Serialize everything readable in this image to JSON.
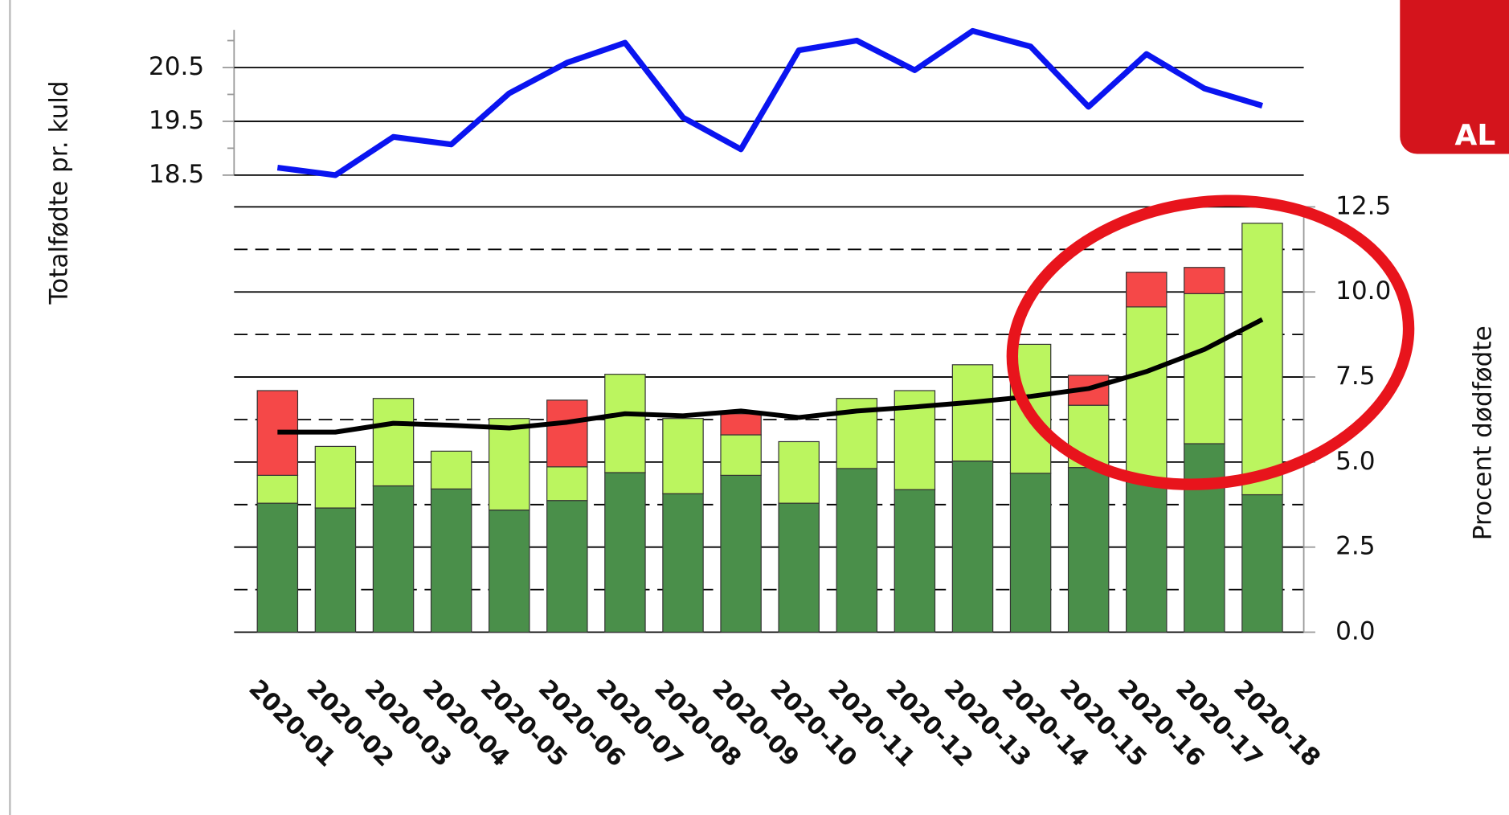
{
  "chart_data": [
    {
      "type": "line",
      "ylabel": "Totalfødte pr. kuld",
      "ylim": [
        18.5,
        21.2
      ],
      "yticks": [
        18.5,
        19.5,
        20.5
      ],
      "yminorticks": [
        19,
        20,
        21
      ],
      "grid": true,
      "series": [
        {
          "color": "#0a14f0",
          "values": [
            18.64,
            18.5,
            19.21,
            19.07,
            20.02,
            20.59,
            20.96,
            19.57,
            18.98,
            20.82,
            21.0,
            20.45,
            21.18,
            20.89,
            19.77,
            20.75,
            20.11,
            19.79
          ]
        }
      ]
    },
    {
      "type": "bar",
      "stacked": true,
      "ylabel": "Procent dødfødte",
      "categories": [
        "2020-01",
        "2020-02",
        "2020-03",
        "2020-04",
        "2020-05",
        "2020-06",
        "2020-07",
        "2020-08",
        "2020-09",
        "2020-10",
        "2020-11",
        "2020-12",
        "2020-13",
        "2020-14",
        "2020-15",
        "2020-16",
        "2020-17",
        "2020-18"
      ],
      "ylim": [
        0,
        12.5
      ],
      "yticks": [
        {
          "value": 0,
          "label": "0.0"
        },
        2.5,
        {
          "value": 5,
          "label": "5.0"
        },
        7.5,
        {
          "value": 10,
          "label": "10.0"
        },
        12.5
      ],
      "yminorticks": [
        1.25,
        3.75,
        6.25,
        8.75,
        11.25
      ],
      "grid": true,
      "series": [
        {
          "color": "#4a8f4a",
          "values": [
            3.79,
            3.65,
            4.3,
            4.21,
            3.59,
            3.87,
            4.69,
            4.07,
            4.61,
            3.79,
            4.81,
            4.19,
            5.03,
            4.67,
            4.84,
            4.41,
            5.54,
            4.04
          ]
        },
        {
          "color": "#bbf55f",
          "values": [
            0.82,
            1.81,
            2.57,
            1.11,
            2.69,
            0.99,
            2.89,
            2.21,
            1.19,
            1.81,
            2.06,
            2.91,
            2.83,
            3.79,
            1.83,
            5.15,
            4.41,
            7.98
          ]
        },
        {
          "color": "#f54848",
          "values": [
            2.49,
            0,
            0,
            0,
            0,
            1.96,
            0,
            0,
            0.62,
            0,
            0,
            0,
            0,
            0,
            0.88,
            1.02,
            0.77,
            0
          ]
        },
        {
          "type": "line",
          "color": "#000000",
          "values": [
            5.88,
            5.88,
            6.14,
            6.08,
            6.0,
            6.17,
            6.42,
            6.36,
            6.5,
            6.31,
            6.5,
            6.62,
            6.76,
            6.93,
            7.16,
            7.66,
            8.31,
            9.19
          ]
        }
      ]
    }
  ],
  "badge": {
    "text": "AL"
  }
}
